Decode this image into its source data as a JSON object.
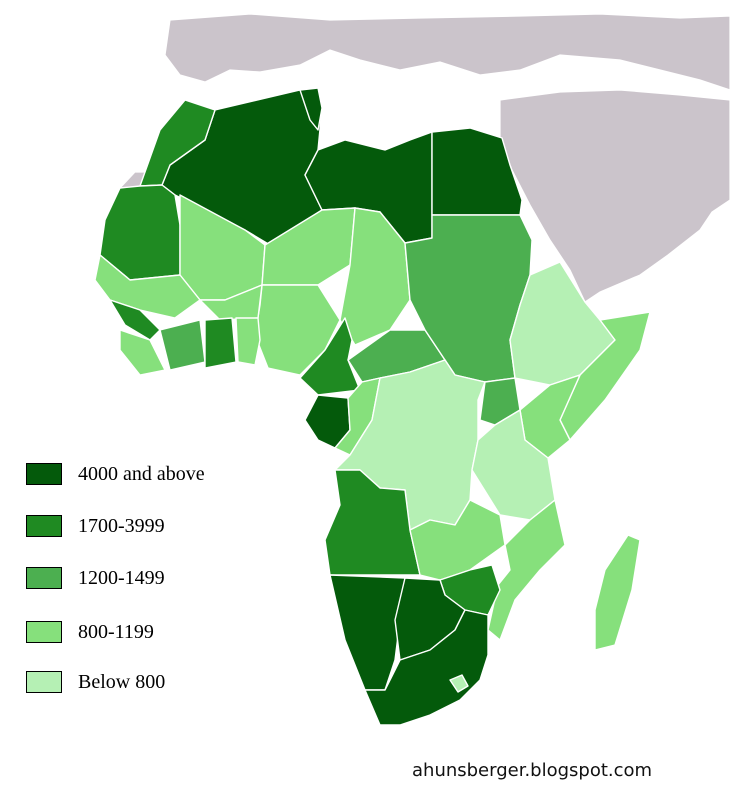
{
  "legend": [
    {
      "label": "4000 and above",
      "color": "#045a0b"
    },
    {
      "label": "1700-3999",
      "color": "#1f8a22"
    },
    {
      "label": "1200-1499",
      "color": "#4caf50"
    },
    {
      "label": "800-1199",
      "color": "#86e07c"
    },
    {
      "label": "Below 800",
      "color": "#b5f0b4"
    }
  ],
  "credit": "ahunsberger.blogspot.com",
  "colors": {
    "background": "#ffffff",
    "other_land": "#cbc4cb",
    "border": "#ffffff"
  }
}
